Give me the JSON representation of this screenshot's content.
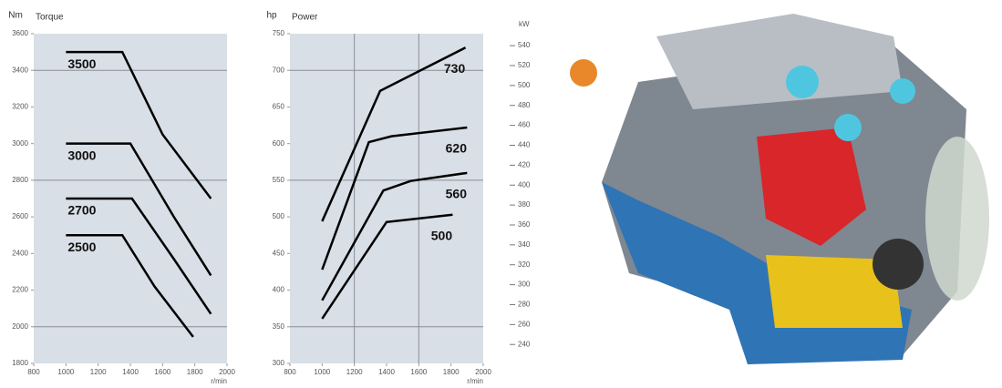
{
  "chart_data": [
    {
      "type": "line",
      "title": "Torque",
      "y_label": "Nm",
      "x_label": "r/min",
      "xlim": [
        800,
        2000
      ],
      "xticks": [
        800,
        1000,
        1200,
        1400,
        1600,
        1800,
        2000
      ],
      "ylim": [
        1800,
        3600
      ],
      "yticks": [
        1800,
        2000,
        2200,
        2400,
        2600,
        2800,
        3000,
        3200,
        3400,
        3600
      ],
      "ygrid": [
        2000,
        2800,
        3400
      ],
      "xgrid": [],
      "background": "#d9dfe7",
      "series": [
        {
          "name": "3500",
          "color": "#000000",
          "x": [
            1000,
            1350,
            1600,
            1900
          ],
          "values": [
            3500,
            3500,
            3050,
            2700
          ]
        },
        {
          "name": "3000",
          "color": "#000000",
          "x": [
            1000,
            1400,
            1670,
            1900
          ],
          "values": [
            3000,
            3000,
            2600,
            2280
          ]
        },
        {
          "name": "2700",
          "color": "#000000",
          "x": [
            1000,
            1410,
            1670,
            1900
          ],
          "values": [
            2700,
            2700,
            2370,
            2070
          ]
        },
        {
          "name": "2500",
          "color": "#000000",
          "x": [
            1000,
            1350,
            1550,
            1790
          ],
          "values": [
            2500,
            2500,
            2220,
            1945
          ]
        }
      ]
    },
    {
      "type": "line",
      "title": "Power",
      "y_label": "hp",
      "x_label": "r/min",
      "y2_label": "kW",
      "xlim": [
        800,
        2000
      ],
      "xticks": [
        800,
        1000,
        1200,
        1400,
        1600,
        1800,
        2000
      ],
      "ylim": [
        300,
        750
      ],
      "yticks": [
        300,
        350,
        400,
        450,
        500,
        550,
        600,
        650,
        700,
        750
      ],
      "y2lim": [
        221,
        552
      ],
      "y2ticks": [
        240,
        260,
        280,
        300,
        320,
        340,
        360,
        380,
        400,
        420,
        440,
        460,
        480,
        500,
        520,
        540
      ],
      "ygrid": [
        350,
        550,
        700
      ],
      "xgrid": [
        1200,
        1600
      ],
      "background": "#d9dfe7",
      "series": [
        {
          "name": "730",
          "color": "#000000",
          "x": [
            1000,
            1360,
            1890
          ],
          "values": [
            494,
            672,
            731
          ]
        },
        {
          "name": "620",
          "color": "#000000",
          "x": [
            1000,
            1290,
            1430,
            1900
          ],
          "values": [
            428,
            602,
            610,
            622
          ]
        },
        {
          "name": "560",
          "color": "#000000",
          "x": [
            1000,
            1380,
            1550,
            1900
          ],
          "values": [
            386,
            536,
            549,
            560
          ]
        },
        {
          "name": "500",
          "color": "#000000",
          "x": [
            1000,
            1400,
            1810
          ],
          "values": [
            361,
            493,
            503
          ]
        }
      ]
    }
  ]
}
